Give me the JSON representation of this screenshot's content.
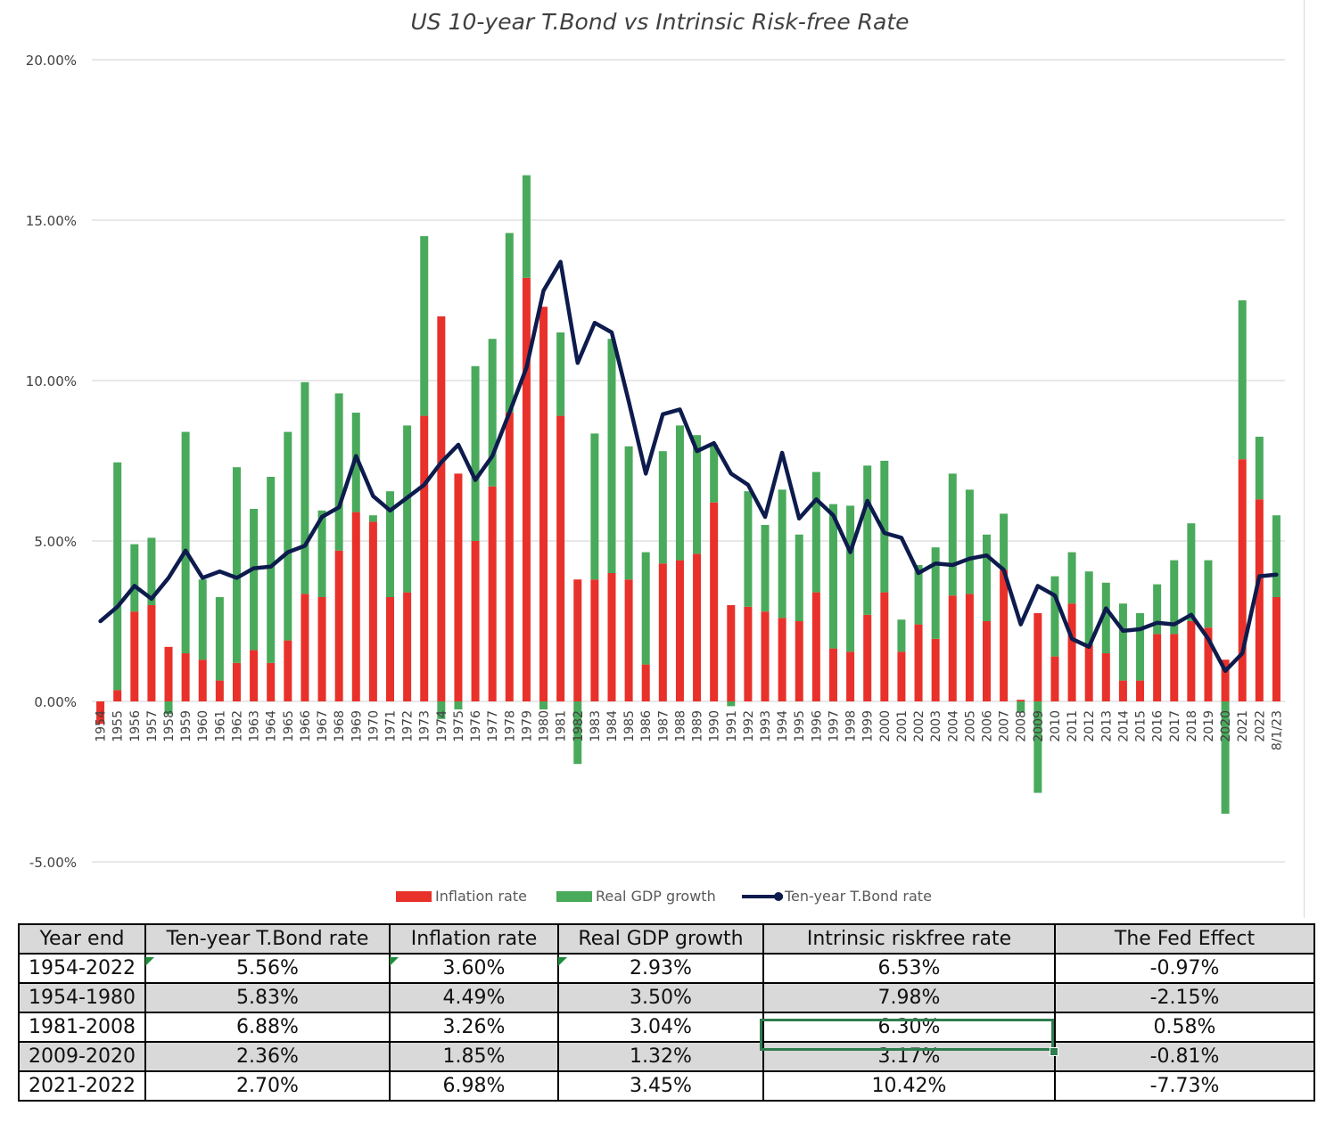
{
  "chart_data": {
    "type": "bar",
    "title": "US 10-year T.Bond vs Intrinsic Risk-free Rate",
    "y_ticks": [
      "20.00%",
      "15.00%",
      "10.00%",
      "5.00%",
      "0.00%",
      "-5.00%"
    ],
    "ylim": [
      -5,
      20
    ],
    "stacked": true,
    "grid": true,
    "legend_position": "bottom",
    "categories": [
      "1954",
      "1955",
      "1956",
      "1957",
      "1958",
      "1959",
      "1960",
      "1961",
      "1962",
      "1963",
      "1964",
      "1965",
      "1966",
      "1967",
      "1968",
      "1969",
      "1970",
      "1971",
      "1972",
      "1973",
      "1974",
      "1975",
      "1976",
      "1977",
      "1978",
      "1979",
      "1980",
      "1981",
      "1982",
      "1983",
      "1984",
      "1985",
      "1986",
      "1987",
      "1988",
      "1989",
      "1990",
      "1991",
      "1992",
      "1993",
      "1994",
      "1995",
      "1996",
      "1997",
      "1998",
      "1999",
      "2000",
      "2001",
      "2002",
      "2003",
      "2004",
      "2005",
      "2006",
      "2007",
      "2008",
      "2009",
      "2010",
      "2011",
      "2012",
      "2013",
      "2014",
      "2015",
      "2016",
      "2017",
      "2018",
      "2019",
      "2020",
      "2021",
      "2022",
      "8/1/23"
    ],
    "series": [
      {
        "name": "Inflation rate",
        "color": "#e8312a",
        "values": [
          -0.7,
          0.35,
          2.8,
          3.0,
          1.7,
          1.5,
          1.3,
          0.65,
          1.2,
          1.6,
          1.2,
          1.9,
          3.35,
          3.25,
          4.7,
          5.9,
          5.6,
          3.25,
          3.4,
          8.9,
          12.0,
          7.1,
          5.0,
          6.7,
          9.0,
          13.2,
          12.3,
          8.9,
          3.8,
          3.8,
          4.0,
          3.8,
          1.15,
          4.3,
          4.4,
          4.6,
          6.2,
          3.0,
          2.95,
          2.8,
          2.6,
          2.5,
          3.4,
          1.65,
          1.55,
          2.7,
          3.4,
          1.55,
          2.4,
          1.95,
          3.3,
          3.35,
          2.5,
          4.1,
          0.05,
          2.75,
          1.4,
          3.05,
          1.75,
          1.5,
          0.65,
          0.65,
          2.1,
          2.1,
          2.5,
          2.3,
          1.3,
          7.55,
          6.3,
          3.25
        ]
      },
      {
        "name": "Real GDP growth",
        "color": "#4aaa5c",
        "values": [
          0.0,
          7.1,
          2.1,
          2.1,
          -0.4,
          6.9,
          2.5,
          2.6,
          6.1,
          4.4,
          5.8,
          6.5,
          6.6,
          2.7,
          4.9,
          3.1,
          0.2,
          3.3,
          5.2,
          5.6,
          -0.55,
          -0.25,
          5.45,
          4.6,
          5.6,
          3.2,
          -0.25,
          2.6,
          -1.95,
          4.55,
          7.3,
          4.15,
          3.5,
          3.5,
          4.2,
          3.7,
          1.8,
          -0.15,
          3.6,
          2.7,
          4.0,
          2.7,
          3.75,
          4.5,
          4.55,
          4.65,
          4.1,
          1.0,
          1.85,
          2.85,
          3.8,
          3.25,
          2.7,
          1.75,
          -0.35,
          -2.85,
          2.5,
          1.6,
          2.3,
          2.2,
          2.4,
          2.1,
          1.55,
          2.3,
          3.05,
          2.1,
          -3.5,
          4.95,
          1.95,
          2.55
        ]
      },
      {
        "name": "Ten-year T.Bond rate",
        "color": "#0d1b4d",
        "type": "line",
        "values": [
          2.5,
          2.95,
          3.6,
          3.2,
          3.85,
          4.7,
          3.85,
          4.05,
          3.85,
          4.15,
          4.2,
          4.65,
          4.85,
          5.75,
          6.05,
          7.65,
          6.4,
          5.95,
          6.35,
          6.75,
          7.45,
          8.0,
          6.9,
          7.65,
          9.0,
          10.4,
          12.8,
          13.7,
          10.55,
          11.8,
          11.5,
          9.35,
          7.1,
          8.95,
          9.1,
          7.8,
          8.05,
          7.1,
          6.75,
          5.75,
          7.75,
          5.7,
          6.3,
          5.8,
          4.65,
          6.25,
          5.25,
          5.1,
          4.0,
          4.3,
          4.25,
          4.45,
          4.55,
          4.1,
          2.4,
          3.6,
          3.3,
          1.95,
          1.7,
          2.9,
          2.2,
          2.25,
          2.45,
          2.4,
          2.7,
          1.95,
          0.95,
          1.5,
          3.9,
          3.95
        ]
      }
    ]
  },
  "legend": {
    "inflation": "Inflation rate",
    "gdp": "Real GDP growth",
    "tbond": "Ten-year T.Bond rate"
  },
  "table": {
    "headers": [
      "Year end",
      "Ten-year T.Bond rate",
      "Inflation rate",
      "Real GDP growth",
      "Intrinsic riskfree rate",
      "The Fed Effect"
    ],
    "rows": [
      [
        "1954-2022",
        "5.56%",
        "3.60%",
        "2.93%",
        "6.53%",
        "-0.97%"
      ],
      [
        "1954-1980",
        "5.83%",
        "4.49%",
        "3.50%",
        "7.98%",
        "-2.15%"
      ],
      [
        "1981-2008",
        "6.88%",
        "3.26%",
        "3.04%",
        "6.30%",
        "0.58%"
      ],
      [
        "2009-2020",
        "2.36%",
        "1.85%",
        "1.32%",
        "3.17%",
        "-0.81%"
      ],
      [
        "2021-2022",
        "2.70%",
        "6.98%",
        "3.45%",
        "10.42%",
        "-7.73%"
      ]
    ]
  },
  "colors": {
    "selection": "#2e7d4f",
    "comment_marker": "#1e8c3a",
    "gridline": "#d9d9d9",
    "header_fill": "#d9d9d9"
  }
}
